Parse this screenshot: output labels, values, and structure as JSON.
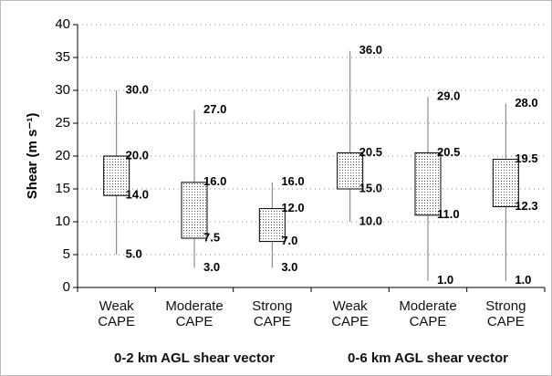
{
  "chart_data": {
    "type": "box",
    "ylabel": "Shear (m s⁻¹)",
    "categories": [
      "Weak CAPE",
      "Moderate CAPE",
      "Strong CAPE",
      "Weak CAPE",
      "Moderate CAPE",
      "Strong CAPE"
    ],
    "groups": [
      "0-2 km AGL shear vector",
      "0-6 km AGL shear vector"
    ],
    "max": {
      "values": [
        30,
        27,
        16,
        36,
        29,
        28
      ],
      "value_labels": [
        "30.0",
        "27.0",
        "16.0",
        "36.0",
        "29.0",
        "28.0"
      ]
    },
    "q3": {
      "values": [
        20,
        16,
        12,
        20.5,
        20.5,
        19.5
      ],
      "value_labels": [
        "20.0",
        "16.0",
        "12.0",
        "20.5",
        "20.5",
        "19.5"
      ]
    },
    "q1": {
      "values": [
        14,
        7.5,
        7,
        15,
        11,
        12.3
      ],
      "value_labels": [
        "14.0",
        "7.5",
        "7.0",
        "15.0",
        "11.0",
        "12.3"
      ]
    },
    "min": {
      "values": [
        5,
        3,
        3,
        10,
        1,
        1
      ],
      "value_labels": [
        "5.0",
        "3.0",
        "3.0",
        "10.0",
        "1.0",
        "1.0"
      ]
    },
    "ylim": [
      0,
      40
    ],
    "yticks": [
      0,
      5,
      10,
      15,
      20,
      25,
      30,
      35,
      40
    ],
    "grid": true
  }
}
